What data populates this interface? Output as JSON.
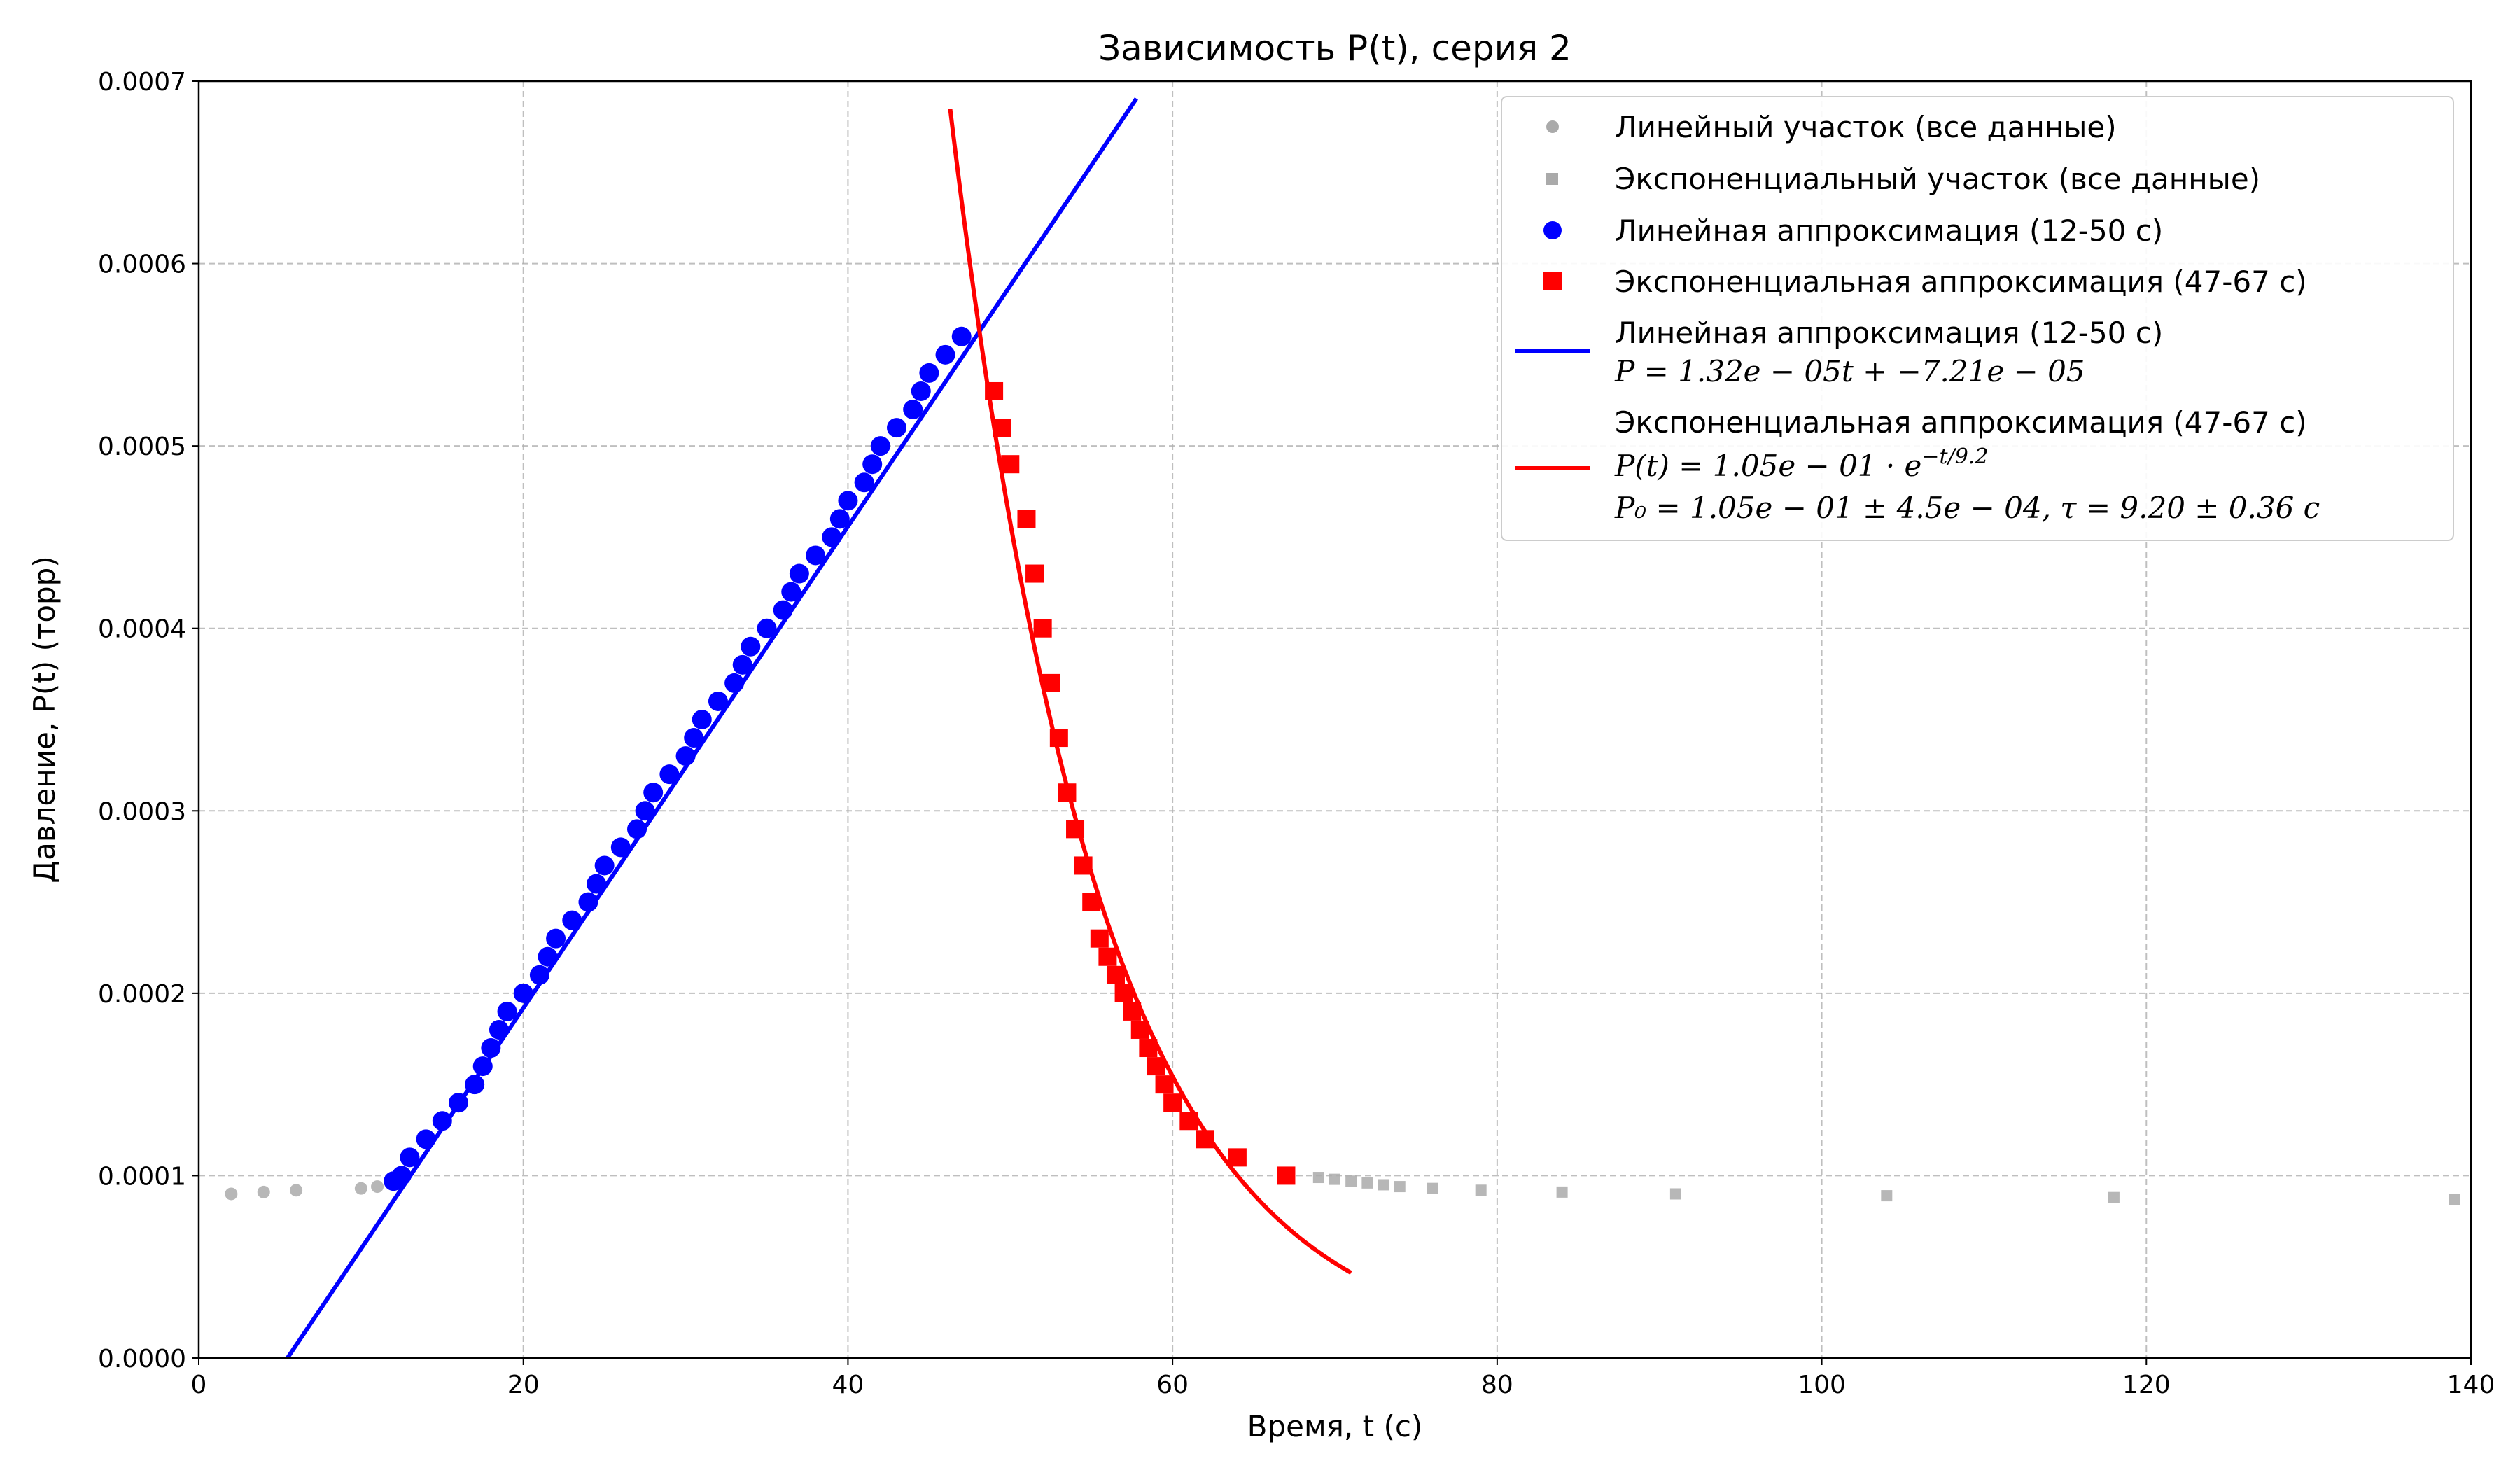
{
  "chart_data": {
    "type": "scatter",
    "title": "Зависимость P(t), серия 2",
    "xlabel": "Время, t (с)",
    "ylabel": "Давление, P(t) (торр)",
    "xlim": [
      0,
      140
    ],
    "ylim": [
      0,
      0.0007
    ],
    "x_ticks": [
      "0",
      "20",
      "40",
      "60",
      "80",
      "100",
      "120",
      "140"
    ],
    "y_ticks": [
      "0.0000",
      "0.0001",
      "0.0002",
      "0.0003",
      "0.0004",
      "0.0005",
      "0.0006",
      "0.0007"
    ],
    "grid": true,
    "legend_position": "top-right",
    "colors": {
      "gray": "#aaaaaa",
      "blue": "#0000ff",
      "red": "#ff0000"
    },
    "series": [
      {
        "name": "Линейный участок (все данные)",
        "marker": "circle",
        "color": "#aaaaaa",
        "x": [
          2,
          4,
          6,
          10,
          11
        ],
        "y": [
          9e-05,
          9.1e-05,
          9.2e-05,
          9.3e-05,
          9.4e-05
        ]
      },
      {
        "name": "Экспоненциальный участок (все данные)",
        "marker": "square",
        "color": "#aaaaaa",
        "x": [
          69,
          70,
          71,
          72,
          73,
          74,
          76,
          79,
          84,
          91,
          104,
          118,
          139
        ],
        "y": [
          9.9e-05,
          9.8e-05,
          9.7e-05,
          9.6e-05,
          9.5e-05,
          9.4e-05,
          9.3e-05,
          9.2e-05,
          9.1e-05,
          9e-05,
          8.9e-05,
          8.8e-05,
          8.7e-05
        ]
      },
      {
        "name": "Линейная аппроксимация (12-50 с)",
        "marker": "circle",
        "color": "#0000ff",
        "x": [
          12,
          12.5,
          13,
          14,
          15,
          16,
          17,
          17.5,
          18,
          18.5,
          19,
          20,
          21,
          21.5,
          22,
          23,
          24,
          24.5,
          25,
          26,
          27,
          27.5,
          28,
          29,
          30,
          30.5,
          31,
          32,
          33,
          33.5,
          34,
          35,
          36,
          36.5,
          37,
          38,
          39,
          39.5,
          40,
          41,
          41.5,
          42,
          43,
          44,
          44.5,
          45,
          46,
          47
        ],
        "y": [
          9.7e-05,
          0.0001,
          0.00011,
          0.00012,
          0.00013,
          0.00014,
          0.00015,
          0.00016,
          0.00017,
          0.00018,
          0.00019,
          0.0002,
          0.00021,
          0.00022,
          0.00023,
          0.00024,
          0.00025,
          0.00026,
          0.00027,
          0.00028,
          0.00029,
          0.0003,
          0.00031,
          0.00032,
          0.00033,
          0.00034,
          0.00035,
          0.00036,
          0.00037,
          0.00038,
          0.00039,
          0.0004,
          0.00041,
          0.00042,
          0.00043,
          0.00044,
          0.00045,
          0.00046,
          0.00047,
          0.00048,
          0.00049,
          0.0005,
          0.00051,
          0.00052,
          0.00053,
          0.00054,
          0.00055,
          0.00056
        ]
      },
      {
        "name": "Экспоненциальная аппроксимация (47-67 с)",
        "marker": "square",
        "color": "#ff0000",
        "x": [
          49,
          49.5,
          50,
          51,
          51.5,
          52,
          52.5,
          53,
          53.5,
          54,
          54.5,
          55,
          55.5,
          56,
          56.5,
          57,
          57.5,
          58,
          58.5,
          59,
          59.5,
          60,
          61,
          62,
          64,
          67
        ],
        "y": [
          0.00053,
          0.00051,
          0.00049,
          0.00046,
          0.00043,
          0.0004,
          0.00037,
          0.00034,
          0.00031,
          0.00029,
          0.00027,
          0.00025,
          0.00023,
          0.00022,
          0.00021,
          0.0002,
          0.00019,
          0.00018,
          0.00017,
          0.00016,
          0.00015,
          0.00014,
          0.00013,
          0.00012,
          0.00011,
          0.0001
        ]
      }
    ],
    "fit_lines": [
      {
        "name": "Линейная аппроксимация (12-50 с)",
        "equation": "P = 1.32e − 05t + −7.21e − 05",
        "color": "#0000ff",
        "slope": 1.32e-05,
        "intercept": -7.21e-05,
        "x_range": [
          5.46,
          57.7
        ]
      },
      {
        "name": "Экспоненциальная аппроксимация (47-67 с)",
        "equation_lhs": "P(t) = 1.05e − 01 · e",
        "equation_exp": "−t/9.2",
        "params": "P₀ = 1.05e − 01 ± 4.5e − 04, τ = 9.20 ± 0.36 с",
        "color": "#ff0000",
        "P0": 0.105,
        "tau": 9.2,
        "x_range": [
          46.3,
          71
        ]
      }
    ]
  }
}
